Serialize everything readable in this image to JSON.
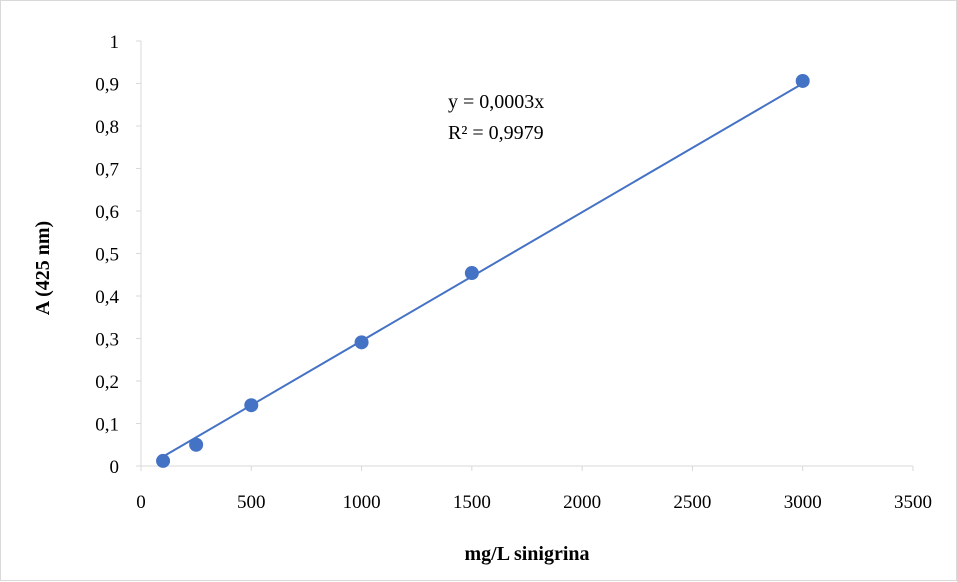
{
  "chart_data": {
    "type": "scatter",
    "title": "",
    "xlabel": "mg/L sinigrina",
    "ylabel": "A (425 nm)",
    "xlim": [
      0,
      3500
    ],
    "ylim": [
      0,
      1
    ],
    "x_ticks": [
      "0",
      "500",
      "1000",
      "1500",
      "2000",
      "2500",
      "3000",
      "3500"
    ],
    "y_ticks": [
      "0",
      "0,1",
      "0,2",
      "0,3",
      "0,4",
      "0,5",
      "0,6",
      "0,7",
      "0,8",
      "0,9",
      "1"
    ],
    "grid": false,
    "legend": "none",
    "series": [
      {
        "x": [
          100,
          250,
          500,
          1000,
          1500,
          3000
        ],
        "y": [
          0.012,
          0.05,
          0.143,
          0.291,
          0.454,
          0.906
        ],
        "color": "#4472C4"
      }
    ],
    "trendline": {
      "type": "linear",
      "color": "#4472C4",
      "x": [
        100,
        3000
      ],
      "y": [
        0.022,
        0.9
      ],
      "equation": "y = 0,0003x",
      "r2": "R² = 0,9979"
    }
  }
}
